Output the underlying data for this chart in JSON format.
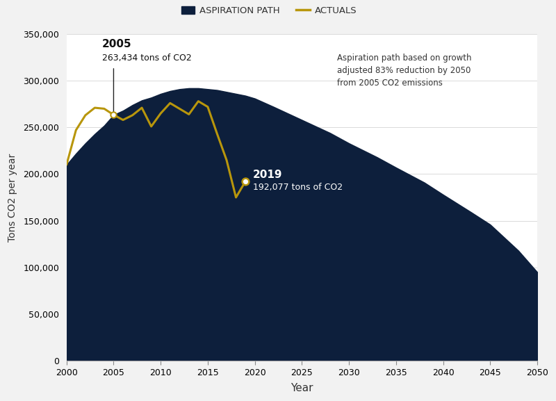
{
  "aspiration_x": [
    2000,
    2001,
    2002,
    2003,
    2004,
    2005,
    2006,
    2007,
    2008,
    2009,
    2010,
    2011,
    2012,
    2013,
    2014,
    2015,
    2016,
    2017,
    2018,
    2019,
    2020,
    2022,
    2025,
    2028,
    2030,
    2033,
    2035,
    2038,
    2040,
    2043,
    2045,
    2048,
    2050
  ],
  "aspiration_y": [
    210000,
    222000,
    233000,
    243000,
    252000,
    263434,
    268000,
    274000,
    279000,
    282000,
    286000,
    289000,
    291000,
    292000,
    292000,
    291000,
    290000,
    288000,
    286000,
    284000,
    281000,
    272000,
    258000,
    244000,
    233000,
    218000,
    207000,
    191000,
    178000,
    159000,
    146000,
    118000,
    95000
  ],
  "actuals_x": [
    2000,
    2001,
    2002,
    2003,
    2004,
    2005,
    2006,
    2007,
    2008,
    2009,
    2010,
    2011,
    2012,
    2013,
    2014,
    2015,
    2016,
    2017,
    2018,
    2019
  ],
  "actuals_y": [
    210000,
    247000,
    263000,
    271000,
    270000,
    263434,
    258000,
    263000,
    271000,
    251000,
    265000,
    276000,
    270000,
    264000,
    278000,
    272000,
    243000,
    215000,
    175000,
    192077
  ],
  "aspiration_fill_color": "#0d1f3c",
  "actuals_line_color": "#b8960c",
  "background_color": "#f2f2f2",
  "plot_bg_color": "#ffffff",
  "ylabel": "Tons CO2 per year",
  "xlabel": "Year",
  "ylim": [
    0,
    350000
  ],
  "xlim": [
    2000,
    2050
  ],
  "yticks": [
    0,
    50000,
    100000,
    150000,
    200000,
    250000,
    300000,
    350000
  ],
  "xticks": [
    2000,
    2005,
    2010,
    2015,
    2020,
    2025,
    2030,
    2035,
    2040,
    2045,
    2050
  ],
  "note_text": "Aspiration path based on growth\nadjusted 83% reduction by 2050\nfrom 2005 CO2 emissions",
  "legend_aspiration": "ASPIRATION PATH",
  "legend_actuals": "ACTUALS"
}
